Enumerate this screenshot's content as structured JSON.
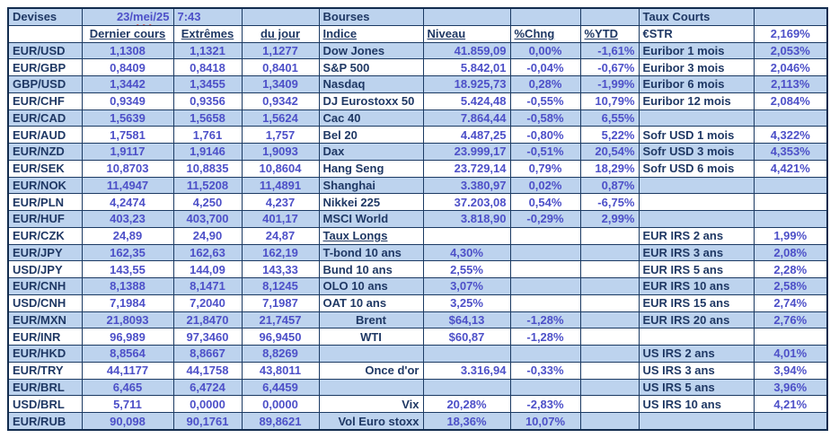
{
  "colors": {
    "band_blue": "#bdd3ee",
    "label_navy": "#1f3864",
    "value_blue": "#4d50c8",
    "grid_line": "#1b3a63",
    "squiggle_red": "#e02b20"
  },
  "header": {
    "devises": "Devises",
    "date_day": "23/",
    "date_month": "mei",
    "date_year": "/25",
    "time": "7:43",
    "bourses": "Bourses",
    "taux_courts": "Taux Courts"
  },
  "devises": {
    "columns": [
      "Dernier cours",
      "Extrêmes",
      "du jour"
    ],
    "rows": [
      [
        "EUR/USD",
        "1,1308",
        "1,1321",
        "1,1277"
      ],
      [
        "EUR/GBP",
        "0,8409",
        "0,8418",
        "0,8401"
      ],
      [
        "GBP/USD",
        "1,3442",
        "1,3455",
        "1,3409"
      ],
      [
        "EUR/CHF",
        "0,9349",
        "0,9356",
        "0,9342"
      ],
      [
        "EUR/CAD",
        "1,5639",
        "1,5658",
        "1,5624"
      ],
      [
        "EUR/AUD",
        "1,7581",
        "1,761",
        "1,757"
      ],
      [
        "EUR/NZD",
        "1,9117",
        "1,9146",
        "1,9093"
      ],
      [
        "EUR/SEK",
        "10,8703",
        "10,8835",
        "10,8604"
      ],
      [
        "EUR/NOK",
        "11,4947",
        "11,5208",
        "11,4891"
      ],
      [
        "EUR/PLN",
        "4,2474",
        "4,250",
        "4,237"
      ],
      [
        "EUR/HUF",
        "403,23",
        "403,700",
        "401,17"
      ],
      [
        "EUR/CZK",
        "24,89",
        "24,90",
        "24,87"
      ],
      [
        "EUR/JPY",
        "162,35",
        "162,63",
        "162,19"
      ],
      [
        "USD/JPY",
        "143,55",
        "144,09",
        "143,33"
      ],
      [
        "EUR/CNH",
        "8,1388",
        "8,1471",
        "8,1245"
      ],
      [
        "USD/CNH",
        "7,1984",
        "7,2040",
        "7,1987"
      ],
      [
        "EUR/MXN",
        "21,8093",
        "21,8470",
        "21,7457"
      ],
      [
        "EUR/INR",
        "96,989",
        "97,3460",
        "96,9450"
      ],
      [
        "EUR/HKD",
        "8,8564",
        "8,8667",
        "8,8269"
      ],
      [
        "EUR/TRY",
        "44,1177",
        "44,1758",
        "43,8011"
      ],
      [
        "EUR/BRL",
        "6,465",
        "6,4724",
        "6,4459"
      ],
      [
        "USD/BRL",
        "5,711",
        "0,0000",
        "0,0000"
      ],
      [
        "EUR/RUB",
        "90,098",
        "90,1761",
        "89,8621"
      ]
    ]
  },
  "bourses": {
    "columns": [
      "Indice",
      "Niveau",
      "%Chng",
      "%YTD"
    ],
    "rows": [
      [
        "Dow Jones",
        "41.859,09",
        "0,00%",
        "-1,61%"
      ],
      [
        "S&P 500",
        "5.842,01",
        "-0,04%",
        "-0,67%"
      ],
      [
        "Nasdaq",
        "18.925,73",
        "0,28%",
        "-1,99%"
      ],
      [
        "DJ Eurostoxx 50",
        "5.424,48",
        "-0,55%",
        "10,79%"
      ],
      [
        "Cac 40",
        "7.864,44",
        "-0,58%",
        "6,55%"
      ],
      [
        "Bel 20",
        "4.487,25",
        "-0,80%",
        "5,22%"
      ],
      [
        "Dax",
        "23.999,17",
        "-0,51%",
        "20,54%"
      ],
      [
        "Hang Seng",
        "23.729,14",
        "0,79%",
        "18,29%"
      ],
      [
        "Shanghai",
        "3.380,97",
        "0,02%",
        "0,87%"
      ],
      [
        "Nikkei 225",
        "37.203,08",
        "0,54%",
        "-6,75%"
      ],
      [
        "MSCI World",
        "3.818,90",
        "-0,29%",
        "2,99%"
      ]
    ]
  },
  "taux_longs": {
    "title": "Taux Longs",
    "rows": [
      [
        "T-bond 10 ans",
        "4,30%"
      ],
      [
        "Bund 10 ans",
        "2,55%"
      ],
      [
        "OLO 10 ans",
        "3,07%"
      ],
      [
        "OAT 10 ans",
        "3,25%"
      ]
    ]
  },
  "autres": {
    "rows": [
      [
        "Brent",
        "$64,13",
        "-1,28%"
      ],
      [
        "WTI",
        "$60,87",
        "-1,28%"
      ],
      [
        "",
        "",
        ""
      ],
      [
        "Once d'or",
        "3.316,94",
        "-0,33%"
      ],
      [
        "",
        "",
        ""
      ],
      [
        "Vix",
        "20,28%",
        "-2,83%"
      ],
      [
        "Vol Euro stoxx",
        "18,36%",
        "10,07%"
      ]
    ]
  },
  "taux_courts": {
    "rows": [
      [
        "€STR",
        "2,169%"
      ],
      [
        "Euribor 1 mois",
        "2,053%"
      ],
      [
        "Euribor 3 mois",
        "2,046%"
      ],
      [
        "Euribor 6 mois",
        "2,113%"
      ],
      [
        "Euribor 12 mois",
        "2,084%"
      ],
      [
        "",
        ""
      ],
      [
        "Sofr USD 1 mois",
        "4,322%"
      ],
      [
        "Sofr USD 3 mois",
        "4,353%"
      ],
      [
        "Sofr USD 6 mois",
        "4,421%"
      ],
      [
        "",
        ""
      ],
      [
        "",
        ""
      ],
      [
        "",
        ""
      ],
      [
        "EUR IRS 2 ans",
        "1,99%"
      ],
      [
        "EUR IRS 3 ans",
        "2,08%"
      ],
      [
        "EUR IRS 5 ans",
        "2,28%"
      ],
      [
        "EUR IRS 10 ans",
        "2,58%"
      ],
      [
        "EUR IRS 15 ans",
        "2,74%"
      ],
      [
        "EUR IRS 20 ans",
        "2,76%"
      ],
      [
        "",
        ""
      ],
      [
        "US IRS 2 ans",
        "4,01%"
      ],
      [
        "US IRS 3 ans",
        "3,94%"
      ],
      [
        "US IRS 5 ans",
        "3,96%"
      ],
      [
        "US IRS 10 ans",
        "4,21%"
      ],
      [
        "",
        ""
      ]
    ]
  }
}
